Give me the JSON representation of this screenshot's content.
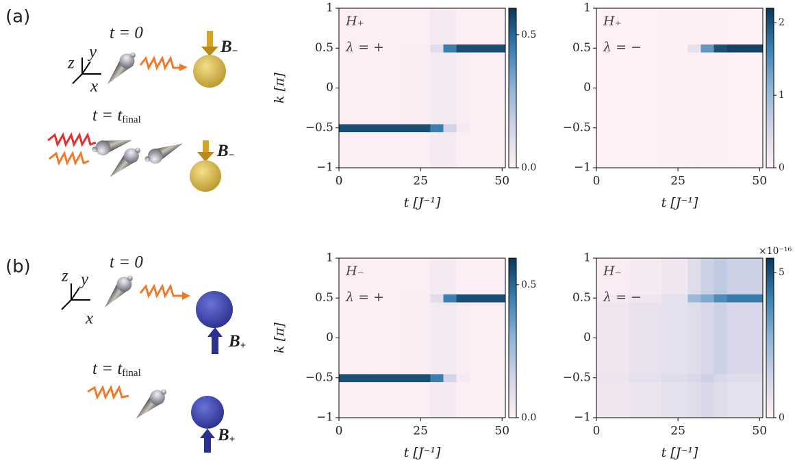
{
  "figure": {
    "panels": [
      {
        "label": "(a)",
        "axes": [
          "z",
          "y",
          "x"
        ],
        "t_initial": "t = 0",
        "t_final": "t = t",
        "t_final_sub": "final",
        "field": "B",
        "field_sub": "−"
      },
      {
        "label": "(b)",
        "axes": [
          "z",
          "y",
          "x"
        ],
        "t_initial": "t = 0",
        "t_final": "t = t",
        "t_final_sub": "final",
        "field": "B",
        "field_sub": "+"
      }
    ]
  },
  "chart_data": [
    {
      "type": "heatmap",
      "annotations": [
        "H₊",
        "λ = +"
      ],
      "x_label": "t [J⁻¹]",
      "y_label": "k [π]",
      "x_edges": [
        0,
        10,
        20,
        28,
        32,
        36,
        40,
        51
      ],
      "y_edges": [
        -1,
        -0.55,
        -0.45,
        0.45,
        0.55,
        1
      ],
      "values": [
        [
          0.01,
          0.01,
          0.01,
          0.03,
          0.03,
          0.01,
          0.01
        ],
        [
          0.55,
          0.55,
          0.55,
          0.45,
          0.15,
          0.03,
          0.01
        ],
        [
          0.01,
          0.01,
          0.02,
          0.04,
          0.04,
          0.02,
          0.01
        ],
        [
          0.01,
          0.01,
          0.02,
          0.1,
          0.45,
          0.55,
          0.55
        ],
        [
          0.01,
          0.01,
          0.01,
          0.03,
          0.03,
          0.01,
          0.01
        ]
      ],
      "xlim": [
        0,
        51
      ],
      "ylim": [
        -1,
        1
      ],
      "xticks": [
        0,
        25,
        50
      ],
      "yticks": [
        {
          "value": -1,
          "label": "−1"
        },
        {
          "value": -0.5,
          "label": "−0.5"
        },
        0,
        0.5,
        1
      ],
      "zlim": [
        0,
        0.6
      ],
      "zticks": [
        {
          "value": 0,
          "label": "0.0"
        },
        0.5
      ],
      "colormap": [
        "#fff0f4",
        "#d3d4e8",
        "#8fb4d6",
        "#3b7fb0",
        "#0b3656"
      ]
    },
    {
      "type": "heatmap",
      "annotations": [
        "H₊",
        "λ = −"
      ],
      "x_label": "t [J⁻¹]",
      "x_edges": [
        0,
        10,
        20,
        28,
        32,
        36,
        40,
        51
      ],
      "y_edges": [
        -1,
        -0.55,
        -0.45,
        0.45,
        0.55,
        1
      ],
      "values": [
        [
          0,
          0,
          0.01,
          0.02,
          0.02,
          0.01,
          0
        ],
        [
          0,
          0,
          0.01,
          0.03,
          0.03,
          0.01,
          0
        ],
        [
          0,
          0,
          0.01,
          0.03,
          0.02,
          0.01,
          0
        ],
        [
          0,
          0,
          0.02,
          0.3,
          1.4,
          2.0,
          2.1
        ],
        [
          0,
          0,
          0.01,
          0.02,
          0.02,
          0.01,
          0
        ]
      ],
      "xlim": [
        0,
        51
      ],
      "ylim": [
        -1,
        1
      ],
      "xticks": [
        0,
        25,
        50
      ],
      "yticks": [
        {
          "value": -1,
          "label": "−1"
        },
        {
          "value": -0.5,
          "label": "−0.5"
        },
        0,
        0.5,
        1
      ],
      "zlim": [
        0,
        2.2
      ],
      "zticks": [
        0,
        1,
        2
      ],
      "colormap": [
        "#fff0f4",
        "#d3d4e8",
        "#8fb4d6",
        "#3b7fb0",
        "#0b3656"
      ]
    },
    {
      "type": "heatmap",
      "annotations": [
        "H₋",
        "λ = +"
      ],
      "x_label": "t [J⁻¹]",
      "y_label": "k [π]",
      "x_edges": [
        0,
        10,
        20,
        28,
        32,
        36,
        40,
        51
      ],
      "y_edges": [
        -1,
        -0.55,
        -0.45,
        0.45,
        0.55,
        1
      ],
      "values": [
        [
          0.01,
          0.01,
          0.01,
          0.03,
          0.03,
          0.01,
          0.01
        ],
        [
          0.55,
          0.55,
          0.55,
          0.45,
          0.15,
          0.03,
          0.01
        ],
        [
          0.01,
          0.01,
          0.02,
          0.04,
          0.04,
          0.02,
          0.01
        ],
        [
          0.01,
          0.01,
          0.02,
          0.1,
          0.45,
          0.55,
          0.55
        ],
        [
          0.01,
          0.01,
          0.01,
          0.03,
          0.03,
          0.01,
          0.01
        ]
      ],
      "xlim": [
        0,
        51
      ],
      "ylim": [
        -1,
        1
      ],
      "xticks": [
        0,
        25,
        50
      ],
      "yticks": [
        {
          "value": -1,
          "label": "−1"
        },
        {
          "value": -0.5,
          "label": "−0.5"
        },
        0,
        0.5,
        1
      ],
      "zlim": [
        0,
        0.6
      ],
      "zticks": [
        {
          "value": 0,
          "label": "0.0"
        },
        0.5
      ],
      "colormap": [
        "#fff0f4",
        "#d3d4e8",
        "#8fb4d6",
        "#3b7fb0",
        "#0b3656"
      ]
    },
    {
      "type": "heatmap",
      "annotations": [
        "H₋",
        "λ = −"
      ],
      "x_label": "t [J⁻¹]",
      "offset_label": "×10⁻¹⁶",
      "x_edges": [
        0,
        10,
        20,
        28,
        32,
        36,
        40,
        51
      ],
      "y_edges": [
        -1,
        -0.55,
        -0.45,
        0.45,
        0.55,
        1
      ],
      "values": [
        [
          0.5,
          0.6,
          0.8,
          1.0,
          1.2,
          1.0,
          0.8
        ],
        [
          0.6,
          0.8,
          1.0,
          1.2,
          1.5,
          1.2,
          1.0
        ],
        [
          0.5,
          0.7,
          0.8,
          1.0,
          1.2,
          1.5,
          1.2
        ],
        [
          0.3,
          0.5,
          0.8,
          2.5,
          3.0,
          3.8,
          4.2
        ],
        [
          0.2,
          0.3,
          0.5,
          1.0,
          1.5,
          1.8,
          1.5
        ]
      ],
      "xlim": [
        0,
        51
      ],
      "ylim": [
        -1,
        1
      ],
      "xticks": [
        0,
        25,
        50
      ],
      "yticks": [
        {
          "value": -1,
          "label": "−1"
        },
        {
          "value": -0.5,
          "label": "−0.5"
        },
        0,
        0.5,
        1
      ],
      "zlim": [
        0,
        5.5
      ],
      "zticks": [
        0,
        5
      ],
      "colormap": [
        "#fff0f4",
        "#d3d4e8",
        "#8fb4d6",
        "#3b7fb0",
        "#0b3656"
      ]
    }
  ]
}
